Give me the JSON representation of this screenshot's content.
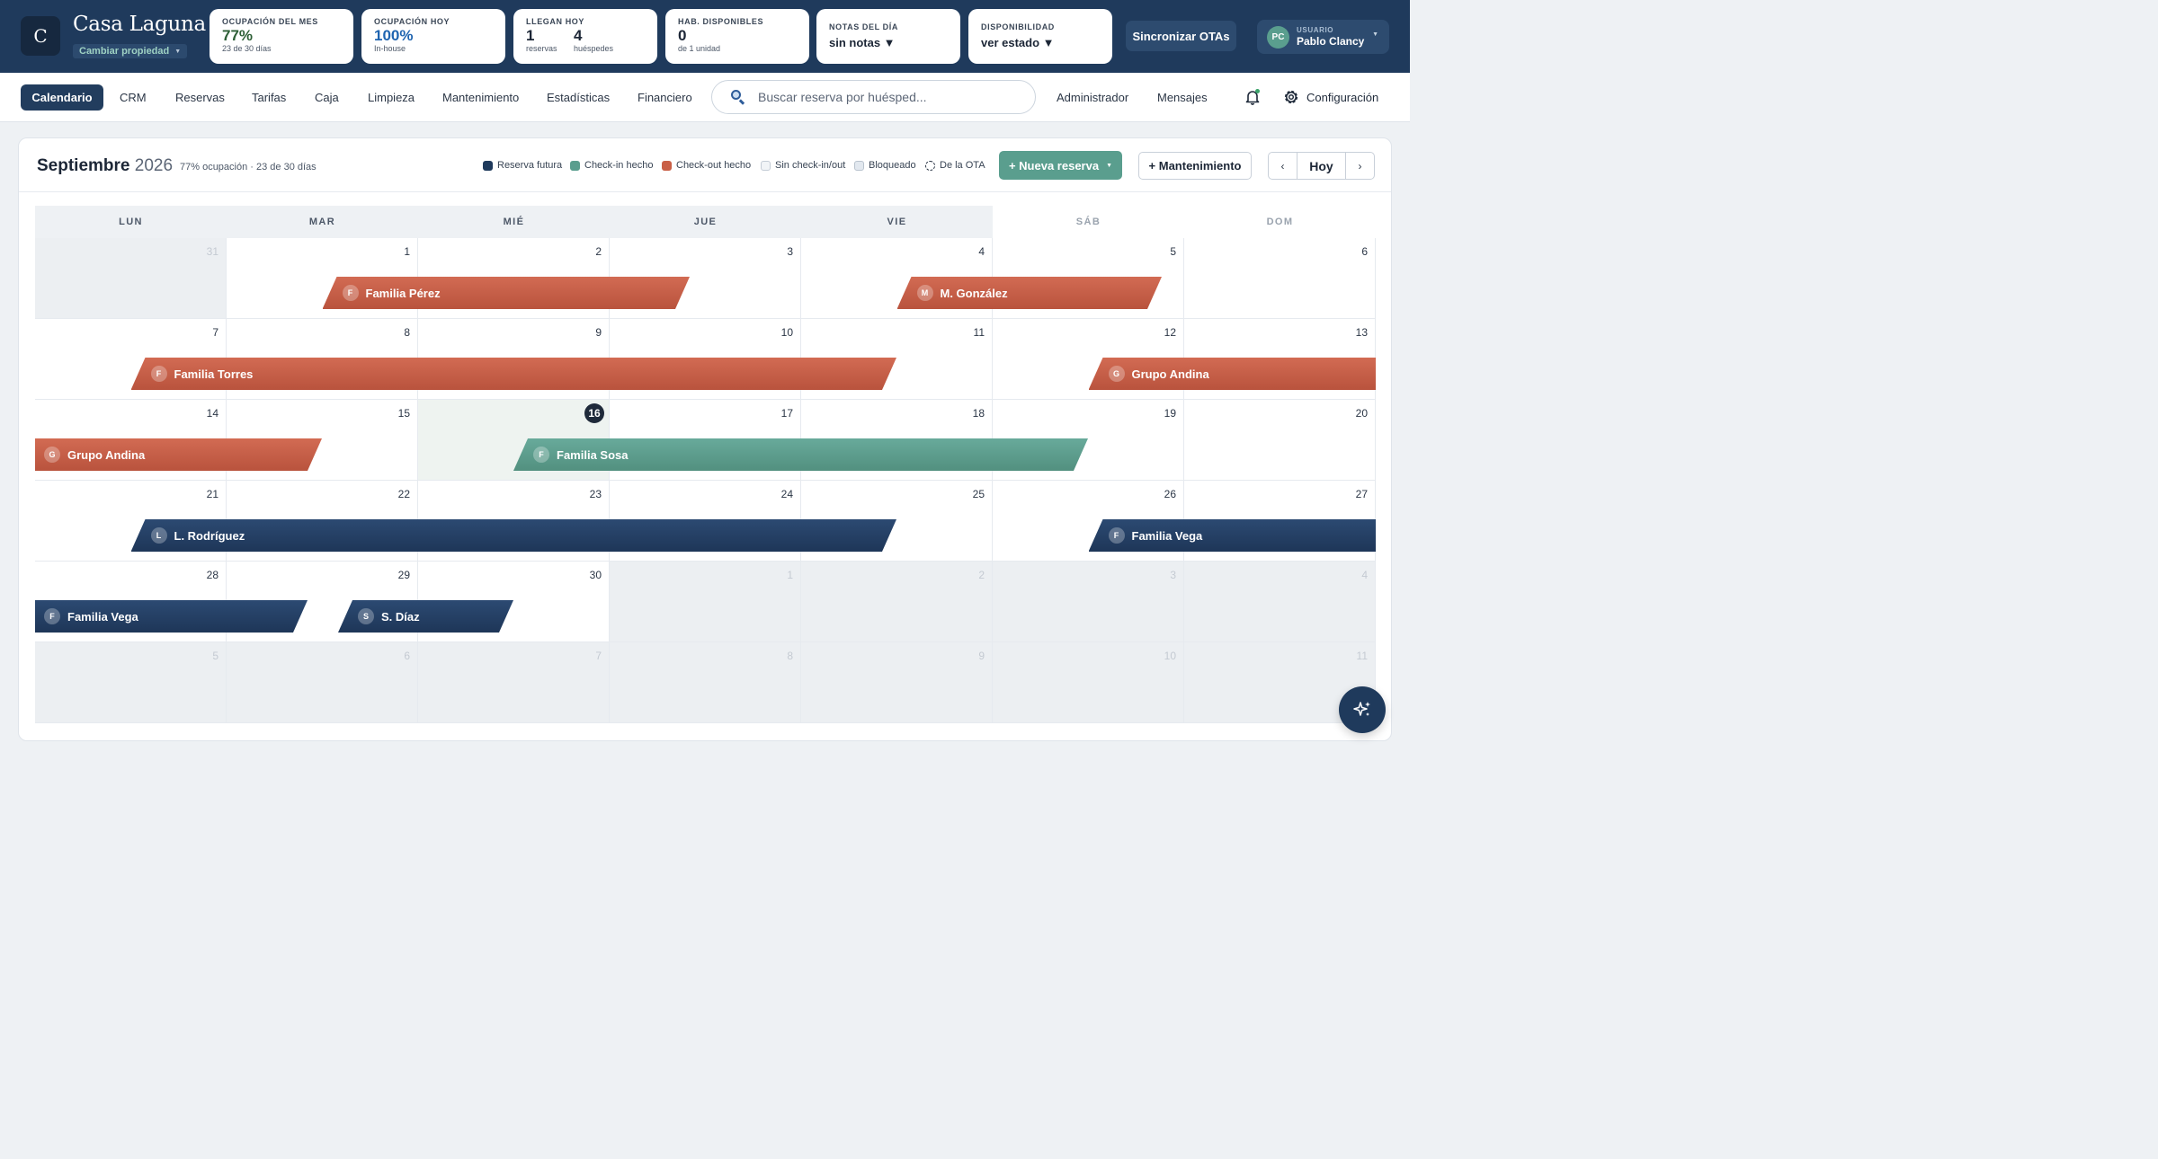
{
  "brand": {
    "logo_letter": "C",
    "name": "Casa Laguna",
    "switch_label": "Cambiar propiedad"
  },
  "stats": [
    {
      "label": "OCUPACIÓN DEL MES",
      "value": "77%",
      "sub": "23 de 30 días"
    },
    {
      "label": "OCUPACIÓN HOY",
      "value": "100%",
      "sub": "In-house"
    },
    {
      "label": "LLEGAN HOY",
      "a_value": "1",
      "a_sub": "reservas",
      "b_value": "4",
      "b_sub": "huéspedes"
    },
    {
      "label": "HAB. DISPONIBLES",
      "value": "0",
      "sub": "de 1 unidad"
    },
    {
      "label": "NOTAS DEL DÍA",
      "value": "sin notas ▼"
    },
    {
      "label": "DISPONIBILIDAD",
      "value": "ver estado ▼"
    }
  ],
  "sync_label": "Sincronizar OTAs",
  "user": {
    "initials": "PC",
    "small_label": "USUARIO",
    "name": "Pablo Clancy"
  },
  "nav": {
    "items": [
      "Calendario",
      "CRM",
      "Reservas",
      "Tarifas",
      "Caja",
      "Limpieza",
      "Mantenimiento",
      "Estadísticas",
      "Financiero"
    ],
    "right_items": [
      "Administrador",
      "Mensajes"
    ],
    "config_label": "Configuración",
    "search_placeholder": "Buscar reserva por huésped..."
  },
  "calendar": {
    "month": "Septiembre",
    "year": "2026",
    "subtitle": "77% ocupación · 23 de 30 días",
    "legend": [
      {
        "label": "Reserva futura",
        "color": "#1f3a5c",
        "style": "solid"
      },
      {
        "label": "Check-in hecho",
        "color": "#5a9e8e",
        "style": "solid"
      },
      {
        "label": "Check-out hecho",
        "color": "#c95f46",
        "style": "solid"
      },
      {
        "label": "Sin check-in/out",
        "color": "#e9edf1",
        "style": "outline"
      },
      {
        "label": "Bloqueado",
        "color": "#e2e8ef",
        "style": "outline"
      },
      {
        "label": "De la OTA",
        "color": "#2b3646",
        "style": "dashed"
      }
    ],
    "new_reservation_label": "+ Nueva reserva",
    "maintenance_label": "+ Mantenimiento",
    "today_label": "Hoy",
    "prev_label": "‹",
    "next_label": "›",
    "weekdays": [
      "LUN",
      "MAR",
      "MIÉ",
      "JUE",
      "VIE",
      "SÁB",
      "DOM"
    ],
    "weeks": [
      [
        31,
        1,
        2,
        3,
        4,
        5,
        6
      ],
      [
        7,
        8,
        9,
        10,
        11,
        12,
        13
      ],
      [
        14,
        15,
        16,
        17,
        18,
        19,
        20
      ],
      [
        21,
        22,
        23,
        24,
        25,
        26,
        27
      ],
      [
        28,
        29,
        30,
        1,
        2,
        3,
        4
      ],
      [
        5,
        6,
        7,
        8,
        9,
        10,
        11
      ]
    ],
    "today": 16,
    "reservations": [
      {
        "name": "Familia Pérez",
        "initial": "F",
        "status": "Check-out hecho",
        "week": 0,
        "start_day": 1,
        "end_day": 4
      },
      {
        "name": "M. González",
        "initial": "M",
        "status": "Check-out hecho",
        "week": 0,
        "start_day": 4,
        "end_day": 6
      },
      {
        "name": "Familia Torres",
        "initial": "F",
        "status": "Check-out hecho",
        "week": 1,
        "start_day": 0,
        "end_day": 4
      },
      {
        "name": "Grupo Andina",
        "initial": "G",
        "status": "Check-out hecho",
        "week": 1,
        "start_day": 5,
        "end_day": 6
      },
      {
        "name": "Grupo Andina",
        "initial": "G",
        "status": "Check-out hecho",
        "week": 2,
        "start_day": 0,
        "end_day": 1
      },
      {
        "name": "Familia Sosa",
        "initial": "F",
        "status": "Check-in hecho",
        "week": 2,
        "start_day": 2,
        "end_day": 5
      },
      {
        "name": "L. Rodríguez",
        "initial": "L",
        "status": "Reserva futura",
        "week": 3,
        "start_day": 0,
        "end_day": 4
      },
      {
        "name": "Familia Vega",
        "initial": "F",
        "status": "Reserva futura",
        "week": 3,
        "start_day": 5,
        "end_day": 6
      },
      {
        "name": "Familia Vega",
        "initial": "F",
        "status": "Reserva futura",
        "week": 4,
        "start_day": 0,
        "end_day": 1
      },
      {
        "name": "S. Díaz",
        "initial": "S",
        "status": "Reserva futura",
        "week": 4,
        "start_day": 1,
        "end_day": 2
      }
    ]
  }
}
